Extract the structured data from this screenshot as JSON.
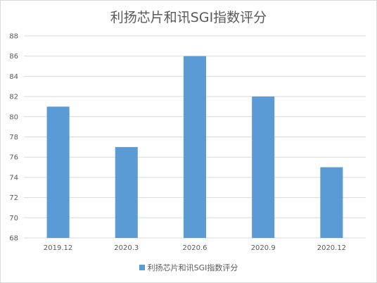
{
  "chart_data": {
    "type": "bar",
    "title": "利扬芯片和讯SGI指数评分",
    "categories": [
      "2019.12",
      "2020.3",
      "2020.6",
      "2020.9",
      "2020.12"
    ],
    "series": [
      {
        "name": "利扬芯片和讯SGI指数评分",
        "values": [
          81,
          77,
          86,
          82,
          75
        ]
      }
    ],
    "ylim": [
      68,
      88
    ],
    "yticks": [
      68,
      70,
      72,
      74,
      76,
      78,
      80,
      82,
      84,
      86,
      88
    ],
    "grid": true,
    "legend": "bottom",
    "colors": {
      "bar": "#5b9bd5",
      "grid": "#d9d9d9",
      "text": "#595959"
    }
  }
}
